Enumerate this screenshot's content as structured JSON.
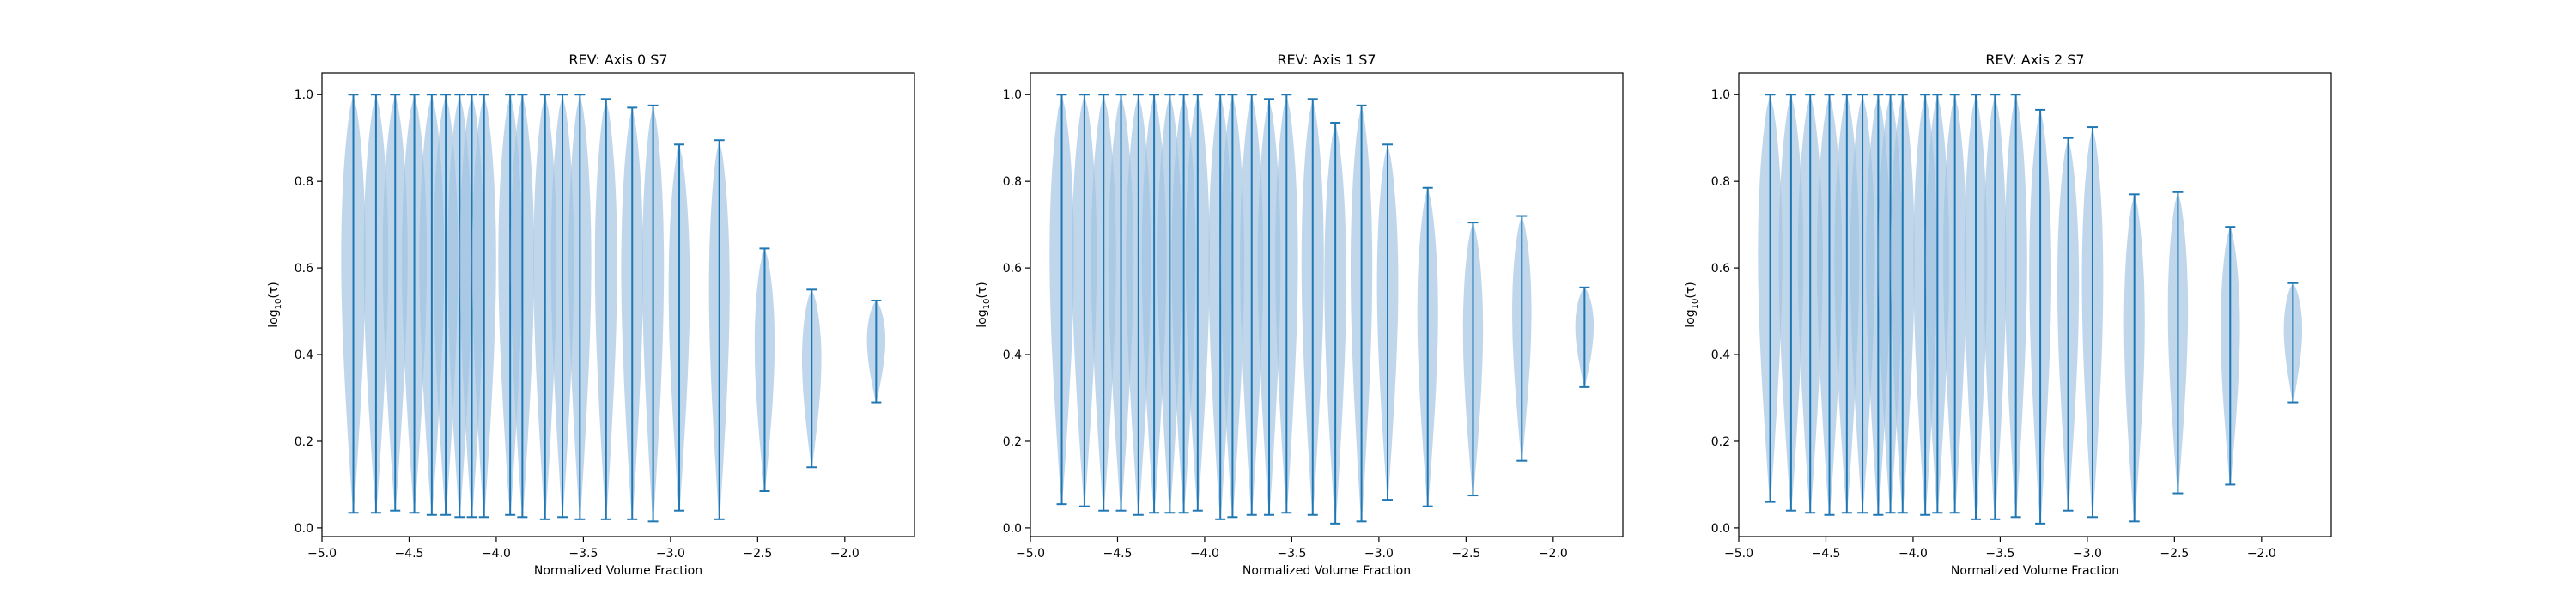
{
  "figure": {
    "violin_color": "#1f77b4",
    "body_fill": "#9ec2e0",
    "body_alpha": 0.65
  },
  "chart_data": [
    {
      "type": "violin",
      "title": "REV: Axis 0 S7",
      "xlabel": "Normalized Volume Fraction",
      "ylabel_html": "log10(τ)",
      "ylabel": {
        "pre": "log",
        "sub": "10",
        "post": "(τ)"
      },
      "xlim": [
        -5.0,
        -1.6
      ],
      "ylim": [
        -0.02,
        1.05
      ],
      "xticks": [
        -5.0,
        -4.5,
        -4.0,
        -3.5,
        -3.0,
        -2.5,
        -2.0
      ],
      "xtick_labels": [
        "−5.0",
        "−4.5",
        "−4.0",
        "−3.5",
        "−3.0",
        "−2.5",
        "−2.0"
      ],
      "yticks": [
        0.0,
        0.2,
        0.4,
        0.6,
        0.8,
        1.0
      ],
      "ytick_labels": [
        "0.0",
        "0.2",
        "0.4",
        "0.6",
        "0.8",
        "1.0"
      ],
      "grid": false,
      "violins": [
        {
          "x": -4.82,
          "min": 0.035,
          "max": 1.0
        },
        {
          "x": -4.69,
          "min": 0.035,
          "max": 1.0
        },
        {
          "x": -4.58,
          "min": 0.04,
          "max": 1.0
        },
        {
          "x": -4.47,
          "min": 0.035,
          "max": 1.0
        },
        {
          "x": -4.37,
          "min": 0.03,
          "max": 1.0
        },
        {
          "x": -4.29,
          "min": 0.03,
          "max": 1.0
        },
        {
          "x": -4.21,
          "min": 0.025,
          "max": 1.0
        },
        {
          "x": -4.14,
          "min": 0.025,
          "max": 1.0
        },
        {
          "x": -4.07,
          "min": 0.025,
          "max": 1.0
        },
        {
          "x": -3.92,
          "min": 0.03,
          "max": 1.0
        },
        {
          "x": -3.85,
          "min": 0.025,
          "max": 1.0
        },
        {
          "x": -3.72,
          "min": 0.02,
          "max": 1.0
        },
        {
          "x": -3.62,
          "min": 0.025,
          "max": 1.0
        },
        {
          "x": -3.52,
          "min": 0.02,
          "max": 1.0
        },
        {
          "x": -3.37,
          "min": 0.02,
          "max": 0.99
        },
        {
          "x": -3.22,
          "min": 0.02,
          "max": 0.97
        },
        {
          "x": -3.1,
          "min": 0.015,
          "max": 0.975
        },
        {
          "x": -2.95,
          "min": 0.04,
          "max": 0.885
        },
        {
          "x": -2.72,
          "min": 0.02,
          "max": 0.895
        },
        {
          "x": -2.46,
          "min": 0.085,
          "max": 0.645
        },
        {
          "x": -2.19,
          "min": 0.14,
          "max": 0.55
        },
        {
          "x": -1.82,
          "min": 0.29,
          "max": 0.525
        }
      ]
    },
    {
      "type": "violin",
      "title": "REV: Axis 1 S7",
      "xlabel": "Normalized Volume Fraction",
      "ylabel_html": "log10(τ)",
      "ylabel": {
        "pre": "log",
        "sub": "10",
        "post": "(τ)"
      },
      "xlim": [
        -5.0,
        -1.6
      ],
      "ylim": [
        -0.02,
        1.05
      ],
      "xticks": [
        -5.0,
        -4.5,
        -4.0,
        -3.5,
        -3.0,
        -2.5,
        -2.0
      ],
      "xtick_labels": [
        "−5.0",
        "−4.5",
        "−4.0",
        "−3.5",
        "−3.0",
        "−2.5",
        "−2.0"
      ],
      "yticks": [
        0.0,
        0.2,
        0.4,
        0.6,
        0.8,
        1.0
      ],
      "ytick_labels": [
        "0.0",
        "0.2",
        "0.4",
        "0.6",
        "0.8",
        "1.0"
      ],
      "grid": false,
      "violins": [
        {
          "x": -4.82,
          "min": 0.055,
          "max": 1.0
        },
        {
          "x": -4.69,
          "min": 0.05,
          "max": 1.0
        },
        {
          "x": -4.58,
          "min": 0.04,
          "max": 1.0
        },
        {
          "x": -4.48,
          "min": 0.04,
          "max": 1.0
        },
        {
          "x": -4.38,
          "min": 0.03,
          "max": 1.0
        },
        {
          "x": -4.29,
          "min": 0.035,
          "max": 1.0
        },
        {
          "x": -4.2,
          "min": 0.035,
          "max": 1.0
        },
        {
          "x": -4.12,
          "min": 0.035,
          "max": 1.0
        },
        {
          "x": -4.04,
          "min": 0.04,
          "max": 1.0
        },
        {
          "x": -3.91,
          "min": 0.02,
          "max": 1.0
        },
        {
          "x": -3.84,
          "min": 0.025,
          "max": 1.0
        },
        {
          "x": -3.73,
          "min": 0.03,
          "max": 1.0
        },
        {
          "x": -3.63,
          "min": 0.03,
          "max": 0.99
        },
        {
          "x": -3.53,
          "min": 0.035,
          "max": 1.0
        },
        {
          "x": -3.38,
          "min": 0.03,
          "max": 0.99
        },
        {
          "x": -3.25,
          "min": 0.01,
          "max": 0.935
        },
        {
          "x": -3.1,
          "min": 0.015,
          "max": 0.975
        },
        {
          "x": -2.95,
          "min": 0.065,
          "max": 0.885
        },
        {
          "x": -2.72,
          "min": 0.05,
          "max": 0.785
        },
        {
          "x": -2.46,
          "min": 0.075,
          "max": 0.705
        },
        {
          "x": -2.18,
          "min": 0.155,
          "max": 0.72
        },
        {
          "x": -1.82,
          "min": 0.325,
          "max": 0.555
        }
      ]
    },
    {
      "type": "violin",
      "title": "REV: Axis 2 S7",
      "xlabel": "Normalized Volume Fraction",
      "ylabel_html": "log10(τ)",
      "ylabel": {
        "pre": "log",
        "sub": "10",
        "post": "(τ)"
      },
      "xlim": [
        -5.0,
        -1.6
      ],
      "ylim": [
        -0.02,
        1.05
      ],
      "xticks": [
        -5.0,
        -4.5,
        -4.0,
        -3.5,
        -3.0,
        -2.5,
        -2.0
      ],
      "xtick_labels": [
        "−5.0",
        "−4.5",
        "−4.0",
        "−3.5",
        "−3.0",
        "−2.5",
        "−2.0"
      ],
      "yticks": [
        0.0,
        0.2,
        0.4,
        0.6,
        0.8,
        1.0
      ],
      "ytick_labels": [
        "0.0",
        "0.2",
        "0.4",
        "0.6",
        "0.8",
        "1.0"
      ],
      "grid": false,
      "violins": [
        {
          "x": -4.82,
          "min": 0.06,
          "max": 1.0
        },
        {
          "x": -4.7,
          "min": 0.04,
          "max": 1.0
        },
        {
          "x": -4.59,
          "min": 0.035,
          "max": 1.0
        },
        {
          "x": -4.48,
          "min": 0.03,
          "max": 1.0
        },
        {
          "x": -4.38,
          "min": 0.035,
          "max": 1.0
        },
        {
          "x": -4.29,
          "min": 0.035,
          "max": 1.0
        },
        {
          "x": -4.2,
          "min": 0.03,
          "max": 1.0
        },
        {
          "x": -4.13,
          "min": 0.035,
          "max": 1.0
        },
        {
          "x": -4.06,
          "min": 0.035,
          "max": 1.0
        },
        {
          "x": -3.93,
          "min": 0.03,
          "max": 1.0
        },
        {
          "x": -3.86,
          "min": 0.035,
          "max": 1.0
        },
        {
          "x": -3.76,
          "min": 0.035,
          "max": 1.0
        },
        {
          "x": -3.64,
          "min": 0.02,
          "max": 1.0
        },
        {
          "x": -3.53,
          "min": 0.02,
          "max": 1.0
        },
        {
          "x": -3.41,
          "min": 0.025,
          "max": 1.0
        },
        {
          "x": -3.27,
          "min": 0.01,
          "max": 0.965
        },
        {
          "x": -3.11,
          "min": 0.04,
          "max": 0.9
        },
        {
          "x": -2.97,
          "min": 0.025,
          "max": 0.925
        },
        {
          "x": -2.73,
          "min": 0.015,
          "max": 0.77
        },
        {
          "x": -2.48,
          "min": 0.08,
          "max": 0.775
        },
        {
          "x": -2.18,
          "min": 0.1,
          "max": 0.695
        },
        {
          "x": -1.82,
          "min": 0.29,
          "max": 0.565
        }
      ]
    }
  ]
}
